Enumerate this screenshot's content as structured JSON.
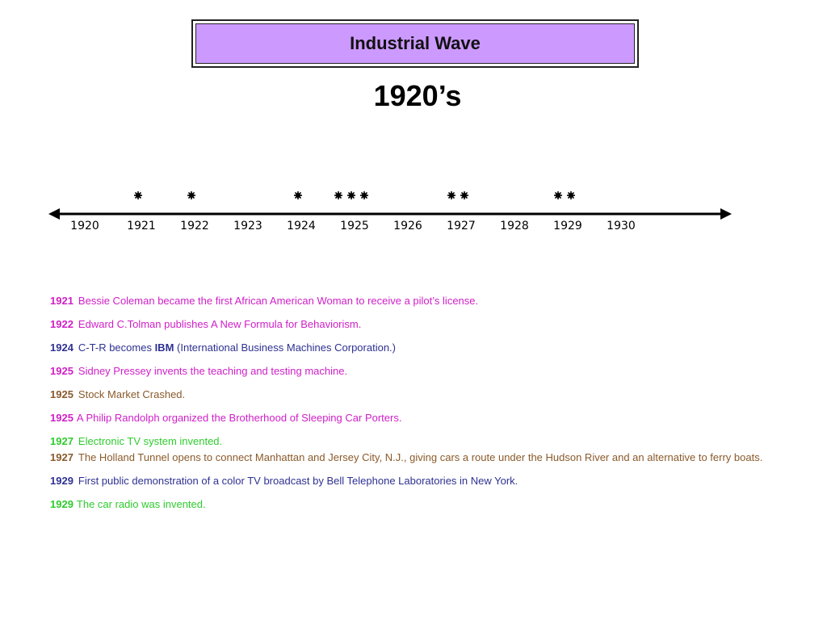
{
  "title": "Industrial Wave",
  "decade": "1920’s",
  "timeline": {
    "years": [
      "1920",
      "1921",
      "1922",
      "1923",
      "1924",
      "1925",
      "1926",
      "1927",
      "1928",
      "1929",
      "1930"
    ],
    "markers": [
      {
        "year": 1921,
        "count": 1
      },
      {
        "year": 1922,
        "count": 1
      },
      {
        "year": 1924,
        "count": 1
      },
      {
        "year": 1925,
        "count": 3
      },
      {
        "year": 1927,
        "count": 2
      },
      {
        "year": 1929,
        "count": 2
      }
    ],
    "line_color": "#000000"
  },
  "events": [
    {
      "year": "1921",
      "text": "Bessie Coleman became the first African American Woman to receive a pilot’s license.",
      "color": "#d020c8"
    },
    {
      "year": "1922",
      "text": "Edward C.Tolman publishes A New Formula for Behaviorism.",
      "color": "#d020c8"
    },
    {
      "year": "1924",
      "text_before": "C-T-R becomes ",
      "text_bold": "IBM",
      "text_after": " (International Business Machines Corporation.)",
      "color": "#2e3192"
    },
    {
      "year": "1925",
      "text": "Sidney Pressey invents the teaching and testing machine.",
      "color": "#d020c8"
    },
    {
      "year": "1925",
      "text": "Stock Market Crashed.",
      "color": "#8a5a2a"
    },
    {
      "year": "1925",
      "text": "A Philip Randolph organized the Brotherhood of Sleeping Car Porters.",
      "color": "#d020c8"
    },
    {
      "year": "1927",
      "text": "Electronic TV system invented.",
      "color": "#2ecc2e"
    },
    {
      "year": "1927",
      "text": "The Holland Tunnel opens to connect Manhattan and Jersey City, N.J., giving cars a route under the Hudson River and an  alternative to ferry boats.",
      "color": "#8a5a2a"
    },
    {
      "year": "1929",
      "text": "First public demonstration of a color TV broadcast by Bell Telephone Laboratories in New York.",
      "color": "#2e3192"
    },
    {
      "year": "1929",
      "text": "The car radio was invented.",
      "color": "#2ecc2e"
    }
  ]
}
